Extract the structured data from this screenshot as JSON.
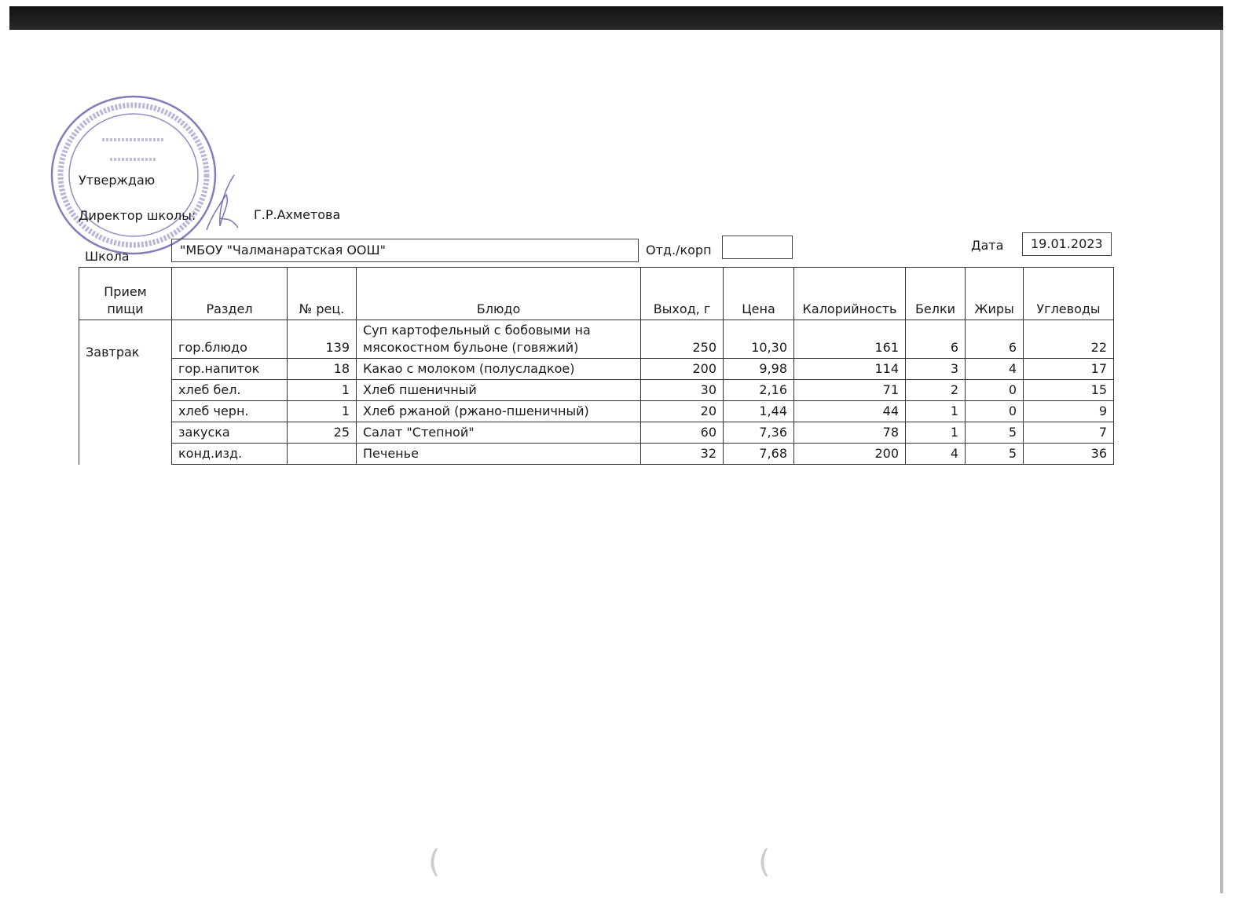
{
  "header": {
    "approve_label": "Утверждаю",
    "director_label": "Директор школы:",
    "director_name": "Г.Р.Ахметова",
    "school_label": "Школа",
    "school_value": "\"МБОУ \"Чалманаратская ООШ\"",
    "dept_label": "Отд./корп",
    "dept_value": "",
    "date_label": "Дата",
    "date_value": "19.01.2023"
  },
  "stamp": {
    "outer_text": "МУНИЦИПАЛЬНОЕ БЮДЖЕТНОЕ ОБЩЕОБРАЗОВАТЕЛЬНОЕ УЧРЕЖДЕНИЕ «ЧАЛМАНАРАТСКАЯ ОСНОВНАЯ ОБЩЕОБРАЗОВАТЕЛЬНАЯ ШКОЛА» АКТАНЫШСКОГО МУНИЦИПАЛЬНОГО РАЙОНА",
    "inn": "ИНН 1604005718",
    "center": "МБОУ «Чалманаратская ООШ»",
    "color": "#6a5aa8"
  },
  "table": {
    "headers": [
      "Прием пищи",
      "Раздел",
      "№ рец.",
      "Блюдо",
      "Выход, г",
      "Цена",
      "Калорийность",
      "Белки",
      "Жиры",
      "Углеводы"
    ],
    "meal": "Завтрак",
    "rows": [
      {
        "section": "гор.блюдо",
        "recipe": "139",
        "dish": "Суп картофельный с бобовыми на мясокостном бульоне (говяжий)",
        "yield": "250",
        "price": "10,30",
        "kcal": "161",
        "protein": "6",
        "fat": "6",
        "carbs": "22"
      },
      {
        "section": "гор.напиток",
        "recipe": "18",
        "dish": "Какао с молоком (полусладкое)",
        "yield": "200",
        "price": "9,98",
        "kcal": "114",
        "protein": "3",
        "fat": "4",
        "carbs": "17"
      },
      {
        "section": "хлеб бел.",
        "recipe": "1",
        "dish": "Хлеб пшеничный",
        "yield": "30",
        "price": "2,16",
        "kcal": "71",
        "protein": "2",
        "fat": "0",
        "carbs": "15"
      },
      {
        "section": "хлеб черн.",
        "recipe": "1",
        "dish": "Хлеб ржаной (ржано-пшеничный)",
        "yield": "20",
        "price": "1,44",
        "kcal": "44",
        "protein": "1",
        "fat": "0",
        "carbs": "9"
      },
      {
        "section": "закуска",
        "recipe": "25",
        "dish": "Салат \"Степной\"",
        "yield": "60",
        "price": "7,36",
        "kcal": "78",
        "protein": "1",
        "fat": "5",
        "carbs": "7"
      },
      {
        "section": "конд.изд.",
        "recipe": "",
        "dish": "Печенье",
        "yield": "32",
        "price": "7,68",
        "kcal": "200",
        "protein": "4",
        "fat": "5",
        "carbs": "36"
      }
    ]
  }
}
